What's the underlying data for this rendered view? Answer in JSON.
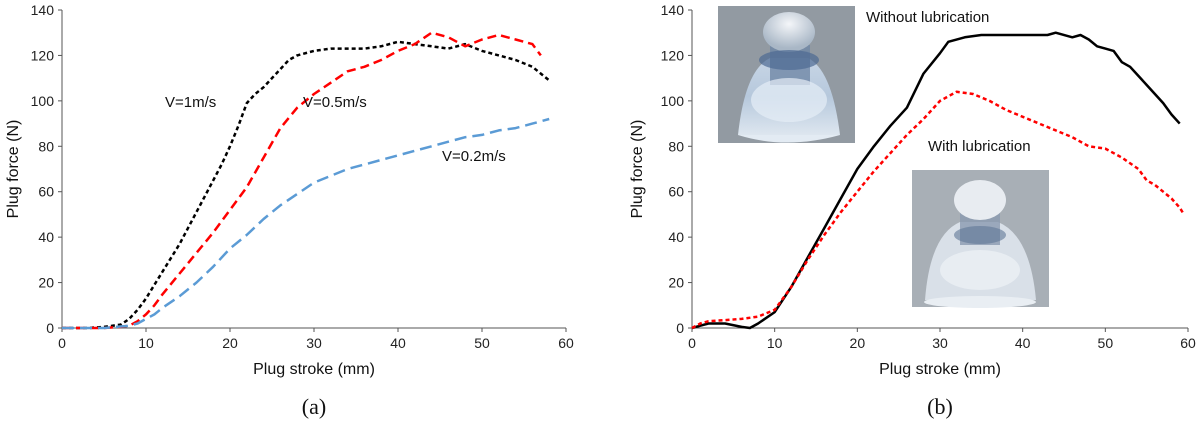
{
  "chart_data": [
    {
      "type": "line",
      "panel_label": "(a)",
      "xlabel": "Plug stroke (mm)",
      "ylabel": "Plug force (N)",
      "xlim": [
        0,
        60
      ],
      "ylim": [
        0,
        140
      ],
      "xticks": [
        "0",
        "10",
        "20",
        "30",
        "40",
        "50",
        "60"
      ],
      "yticks": [
        "0",
        "20",
        "40",
        "60",
        "80",
        "100",
        "120",
        "140"
      ],
      "grid": false,
      "annotations": [
        {
          "text": "V=1m/s",
          "series": 0
        },
        {
          "text": "V=0.5m/s",
          "series": 1
        },
        {
          "text": "V=0.2m/s",
          "series": 2
        }
      ],
      "series": [
        {
          "color": "#000000",
          "dash": "4,3",
          "points": [
            [
              0,
              0
            ],
            [
              3,
              0
            ],
            [
              5,
              0.5
            ],
            [
              7,
              1.5
            ],
            [
              8,
              4
            ],
            [
              9,
              8
            ],
            [
              10,
              13
            ],
            [
              11,
              19
            ],
            [
              12,
              25
            ],
            [
              13,
              31
            ],
            [
              14,
              37
            ],
            [
              15,
              44
            ],
            [
              16,
              51
            ],
            [
              17,
              58
            ],
            [
              18,
              65
            ],
            [
              19,
              72
            ],
            [
              20,
              80
            ],
            [
              21,
              89
            ],
            [
              22,
              99
            ],
            [
              23,
              103
            ],
            [
              24,
              106
            ],
            [
              25,
              110
            ],
            [
              26,
              114
            ],
            [
              27,
              118
            ],
            [
              28,
              120
            ],
            [
              30,
              122
            ],
            [
              32,
              123
            ],
            [
              34,
              123
            ],
            [
              36,
              123
            ],
            [
              38,
              124
            ],
            [
              40,
              126
            ],
            [
              42,
              125
            ],
            [
              44,
              124
            ],
            [
              46,
              123
            ],
            [
              48,
              125
            ],
            [
              50,
              122
            ],
            [
              52,
              120
            ],
            [
              54,
              118
            ],
            [
              56,
              115
            ],
            [
              57,
              112
            ],
            [
              58,
              109
            ]
          ]
        },
        {
          "color": "#ff0000",
          "dash": "9,5",
          "points": [
            [
              0,
              0
            ],
            [
              5,
              0
            ],
            [
              7,
              0.5
            ],
            [
              8,
              1
            ],
            [
              9,
              3
            ],
            [
              10,
              6
            ],
            [
              11,
              10
            ],
            [
              12,
              15
            ],
            [
              14,
              24
            ],
            [
              16,
              33
            ],
            [
              18,
              42
            ],
            [
              20,
              52
            ],
            [
              22,
              62
            ],
            [
              24,
              75
            ],
            [
              26,
              88
            ],
            [
              28,
              97
            ],
            [
              30,
              103
            ],
            [
              32,
              108
            ],
            [
              34,
              113
            ],
            [
              36,
              115
            ],
            [
              38,
              118
            ],
            [
              40,
              122
            ],
            [
              42,
              125
            ],
            [
              44,
              130
            ],
            [
              46,
              128
            ],
            [
              48,
              124
            ],
            [
              50,
              127
            ],
            [
              52,
              129
            ],
            [
              54,
              127
            ],
            [
              56,
              125
            ],
            [
              57,
              120
            ]
          ]
        },
        {
          "color": "#5b9bd5",
          "dash": "12,6",
          "points": [
            [
              0,
              0
            ],
            [
              5,
              0
            ],
            [
              8,
              1
            ],
            [
              9,
              2
            ],
            [
              10,
              4
            ],
            [
              11,
              6
            ],
            [
              12,
              9
            ],
            [
              14,
              14
            ],
            [
              16,
              20
            ],
            [
              18,
              27
            ],
            [
              20,
              35
            ],
            [
              22,
              41
            ],
            [
              24,
              48
            ],
            [
              26,
              54
            ],
            [
              28,
              59
            ],
            [
              30,
              64
            ],
            [
              32,
              67
            ],
            [
              34,
              70
            ],
            [
              36,
              72
            ],
            [
              38,
              74
            ],
            [
              40,
              76
            ],
            [
              42,
              78
            ],
            [
              44,
              80
            ],
            [
              46,
              82
            ],
            [
              48,
              84
            ],
            [
              50,
              85
            ],
            [
              52,
              87
            ],
            [
              54,
              88
            ],
            [
              56,
              90
            ],
            [
              58,
              92
            ]
          ]
        }
      ]
    },
    {
      "type": "line",
      "panel_label": "(b)",
      "xlabel": "Plug stroke (mm)",
      "ylabel": "Plug force (N)",
      "xlim": [
        0,
        60
      ],
      "ylim": [
        0,
        140
      ],
      "xticks": [
        "0",
        "10",
        "20",
        "30",
        "40",
        "50",
        "60"
      ],
      "yticks": [
        "0",
        "20",
        "40",
        "60",
        "80",
        "100",
        "120",
        "140"
      ],
      "grid": false,
      "annotations": [
        {
          "text": "Without lubrication",
          "series": 0
        },
        {
          "text": "With lubrication",
          "series": 1
        }
      ],
      "insets": [
        "photo of formed part without lubrication",
        "photo of formed part with lubrication"
      ],
      "series": [
        {
          "color": "#000000",
          "dash": "",
          "points": [
            [
              0,
              0
            ],
            [
              1,
              1
            ],
            [
              2,
              2
            ],
            [
              4,
              2
            ],
            [
              6,
              0.5
            ],
            [
              7,
              0
            ],
            [
              8,
              2
            ],
            [
              10,
              7
            ],
            [
              12,
              18
            ],
            [
              14,
              31
            ],
            [
              16,
              44
            ],
            [
              18,
              57
            ],
            [
              20,
              70
            ],
            [
              22,
              80
            ],
            [
              24,
              89
            ],
            [
              26,
              97
            ],
            [
              28,
              112
            ],
            [
              30,
              121
            ],
            [
              31,
              126
            ],
            [
              33,
              128
            ],
            [
              35,
              129
            ],
            [
              37,
              129
            ],
            [
              39,
              129
            ],
            [
              41,
              129
            ],
            [
              43,
              129
            ],
            [
              44,
              130
            ],
            [
              46,
              128
            ],
            [
              47,
              129
            ],
            [
              48,
              127
            ],
            [
              49,
              124
            ],
            [
              50,
              123
            ],
            [
              51,
              122
            ],
            [
              52,
              117
            ],
            [
              53,
              115
            ],
            [
              54,
              111
            ],
            [
              55,
              107
            ],
            [
              56,
              103
            ],
            [
              57,
              99
            ],
            [
              58,
              94
            ],
            [
              59,
              90
            ]
          ]
        },
        {
          "color": "#ff0000",
          "dash": "4,3",
          "points": [
            [
              0,
              0
            ],
            [
              1,
              2
            ],
            [
              2,
              3
            ],
            [
              4,
              3.5
            ],
            [
              6,
              4
            ],
            [
              8,
              5
            ],
            [
              10,
              8
            ],
            [
              12,
              18
            ],
            [
              14,
              30
            ],
            [
              16,
              41
            ],
            [
              18,
              51
            ],
            [
              20,
              60
            ],
            [
              22,
              69
            ],
            [
              24,
              77
            ],
            [
              26,
              85
            ],
            [
              28,
              92
            ],
            [
              30,
              100
            ],
            [
              32,
              104
            ],
            [
              34,
              103
            ],
            [
              36,
              100
            ],
            [
              38,
              96
            ],
            [
              40,
              93
            ],
            [
              42,
              90
            ],
            [
              44,
              87
            ],
            [
              46,
              84
            ],
            [
              48,
              80
            ],
            [
              50,
              79
            ],
            [
              52,
              75
            ],
            [
              54,
              70
            ],
            [
              55,
              65
            ],
            [
              56,
              63
            ],
            [
              57,
              60
            ],
            [
              58,
              57
            ],
            [
              59,
              53
            ],
            [
              59.5,
              50
            ]
          ]
        }
      ]
    }
  ]
}
